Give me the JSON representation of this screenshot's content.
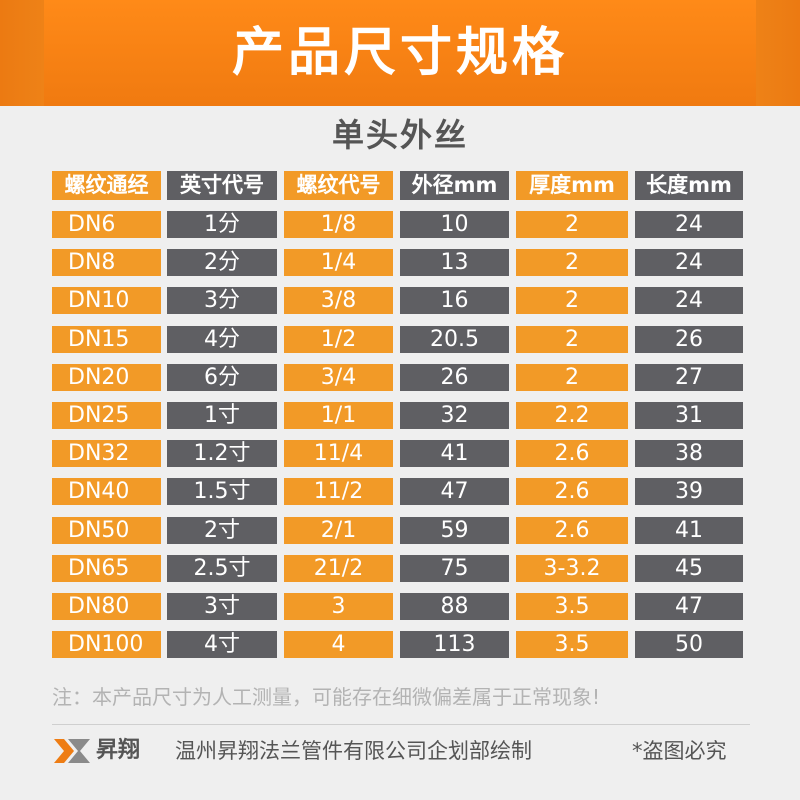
{
  "header": {
    "title": "产品尺寸规格",
    "subtitle": "单头外丝"
  },
  "table": {
    "columns": [
      "螺纹通经",
      "英寸代号",
      "螺纹代号",
      "外径mm",
      "厚度mm",
      "长度mm"
    ],
    "rows": [
      [
        "DN6",
        "1分",
        "1/8",
        "10",
        "2",
        "24"
      ],
      [
        "DN8",
        "2分",
        "1/4",
        "13",
        "2",
        "24"
      ],
      [
        "DN10",
        "3分",
        "3/8",
        "16",
        "2",
        "24"
      ],
      [
        "DN15",
        "4分",
        "1/2",
        "20.5",
        "2",
        "26"
      ],
      [
        "DN20",
        "6分",
        "3/4",
        "26",
        "2",
        "27"
      ],
      [
        "DN25",
        "1寸",
        "1/1",
        "32",
        "2.2",
        "31"
      ],
      [
        "DN32",
        "1.2寸",
        "11/4",
        "41",
        "2.6",
        "38"
      ],
      [
        "DN40",
        "1.5寸",
        "11/2",
        "47",
        "2.6",
        "39"
      ],
      [
        "DN50",
        "2寸",
        "2/1",
        "59",
        "2.6",
        "41"
      ],
      [
        "DN65",
        "2.5寸",
        "21/2",
        "75",
        "3-3.2",
        "45"
      ],
      [
        "DN80",
        "3寸",
        "3",
        "88",
        "3.5",
        "47"
      ],
      [
        "DN100",
        "4寸",
        "4",
        "113",
        "3.5",
        "50"
      ]
    ]
  },
  "note": "注：本产品尺寸为人工测量，可能存在细微偏差属于正常现象!",
  "footer": {
    "brand": "昇翔",
    "company": "温州昇翔法兰管件有限公司企划部绘制",
    "right": "*盗图必究"
  },
  "colors": {
    "orange": "#f29a27",
    "gray": "#5f5f63",
    "banner_orange": "#f07a10"
  }
}
